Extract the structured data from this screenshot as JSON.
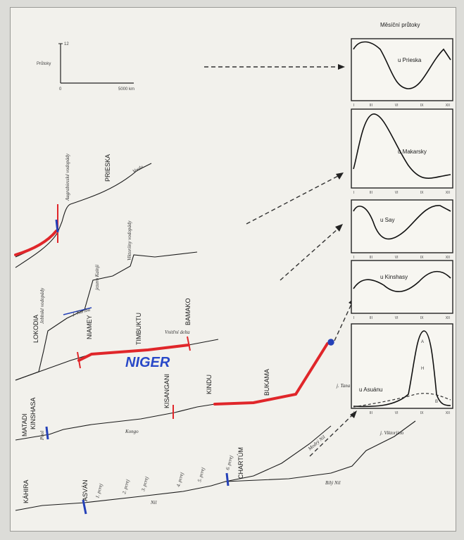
{
  "inset_title": "Měsíční průtoky",
  "legend": {
    "ylabel": "Průtoky",
    "ymax": "12",
    "xmin": "0",
    "xmax": "5000 km"
  },
  "hydrographs": [
    {
      "label": "u Prieska",
      "ticks": [
        "I",
        "III",
        "VI",
        "IX",
        "XII"
      ]
    },
    {
      "label": "u Makarsky",
      "ticks": [
        "I",
        "III",
        "VI",
        "IX",
        "XII"
      ]
    },
    {
      "label": "u Say",
      "ticks": [
        "I",
        "III",
        "VI",
        "IX",
        "XII"
      ]
    },
    {
      "label": "u Kinshasy",
      "ticks": [
        "I",
        "III",
        "VI",
        "IX",
        "XII"
      ]
    },
    {
      "label": "u Asuánu",
      "ticks": [
        "I",
        "III",
        "VI",
        "IX",
        "XII"
      ],
      "extra_labels": [
        "A",
        "H",
        "B"
      ]
    }
  ],
  "rivers": {
    "orange": {
      "places": [
        "PRIESKA"
      ],
      "notes": [
        "Augrabiesské vodopády",
        "Vaalu"
      ]
    },
    "niger": {
      "places": [
        "LOKODIA",
        "NIAMEY",
        "TIMBUKTU",
        "BAMAKO"
      ],
      "notes": [
        "Jebbské vodopády",
        "jezero Kainji",
        "Viktoriiny vodopády",
        "Vnitřní delta",
        "j. Kariba"
      ],
      "annotation": "NIGER"
    },
    "congo": {
      "places": [
        "MATADI",
        "KINSHASA",
        "KISANGANI",
        "KINDU",
        "BUKAMA"
      ],
      "notes": [
        "Pool",
        "Kongo"
      ]
    },
    "nile": {
      "places": [
        "KÁHIRA",
        "ASVÁN",
        "CHARTÚM"
      ],
      "notes": [
        "1. pcrej",
        "2. pcrej",
        "3. pcrej",
        "4. pcrej",
        "5. pcrej",
        "6. pcrej",
        "Nil",
        "Modrý Nil",
        "Bílý Nil",
        "j. Tana",
        "j. Viktoriino"
      ]
    }
  }
}
